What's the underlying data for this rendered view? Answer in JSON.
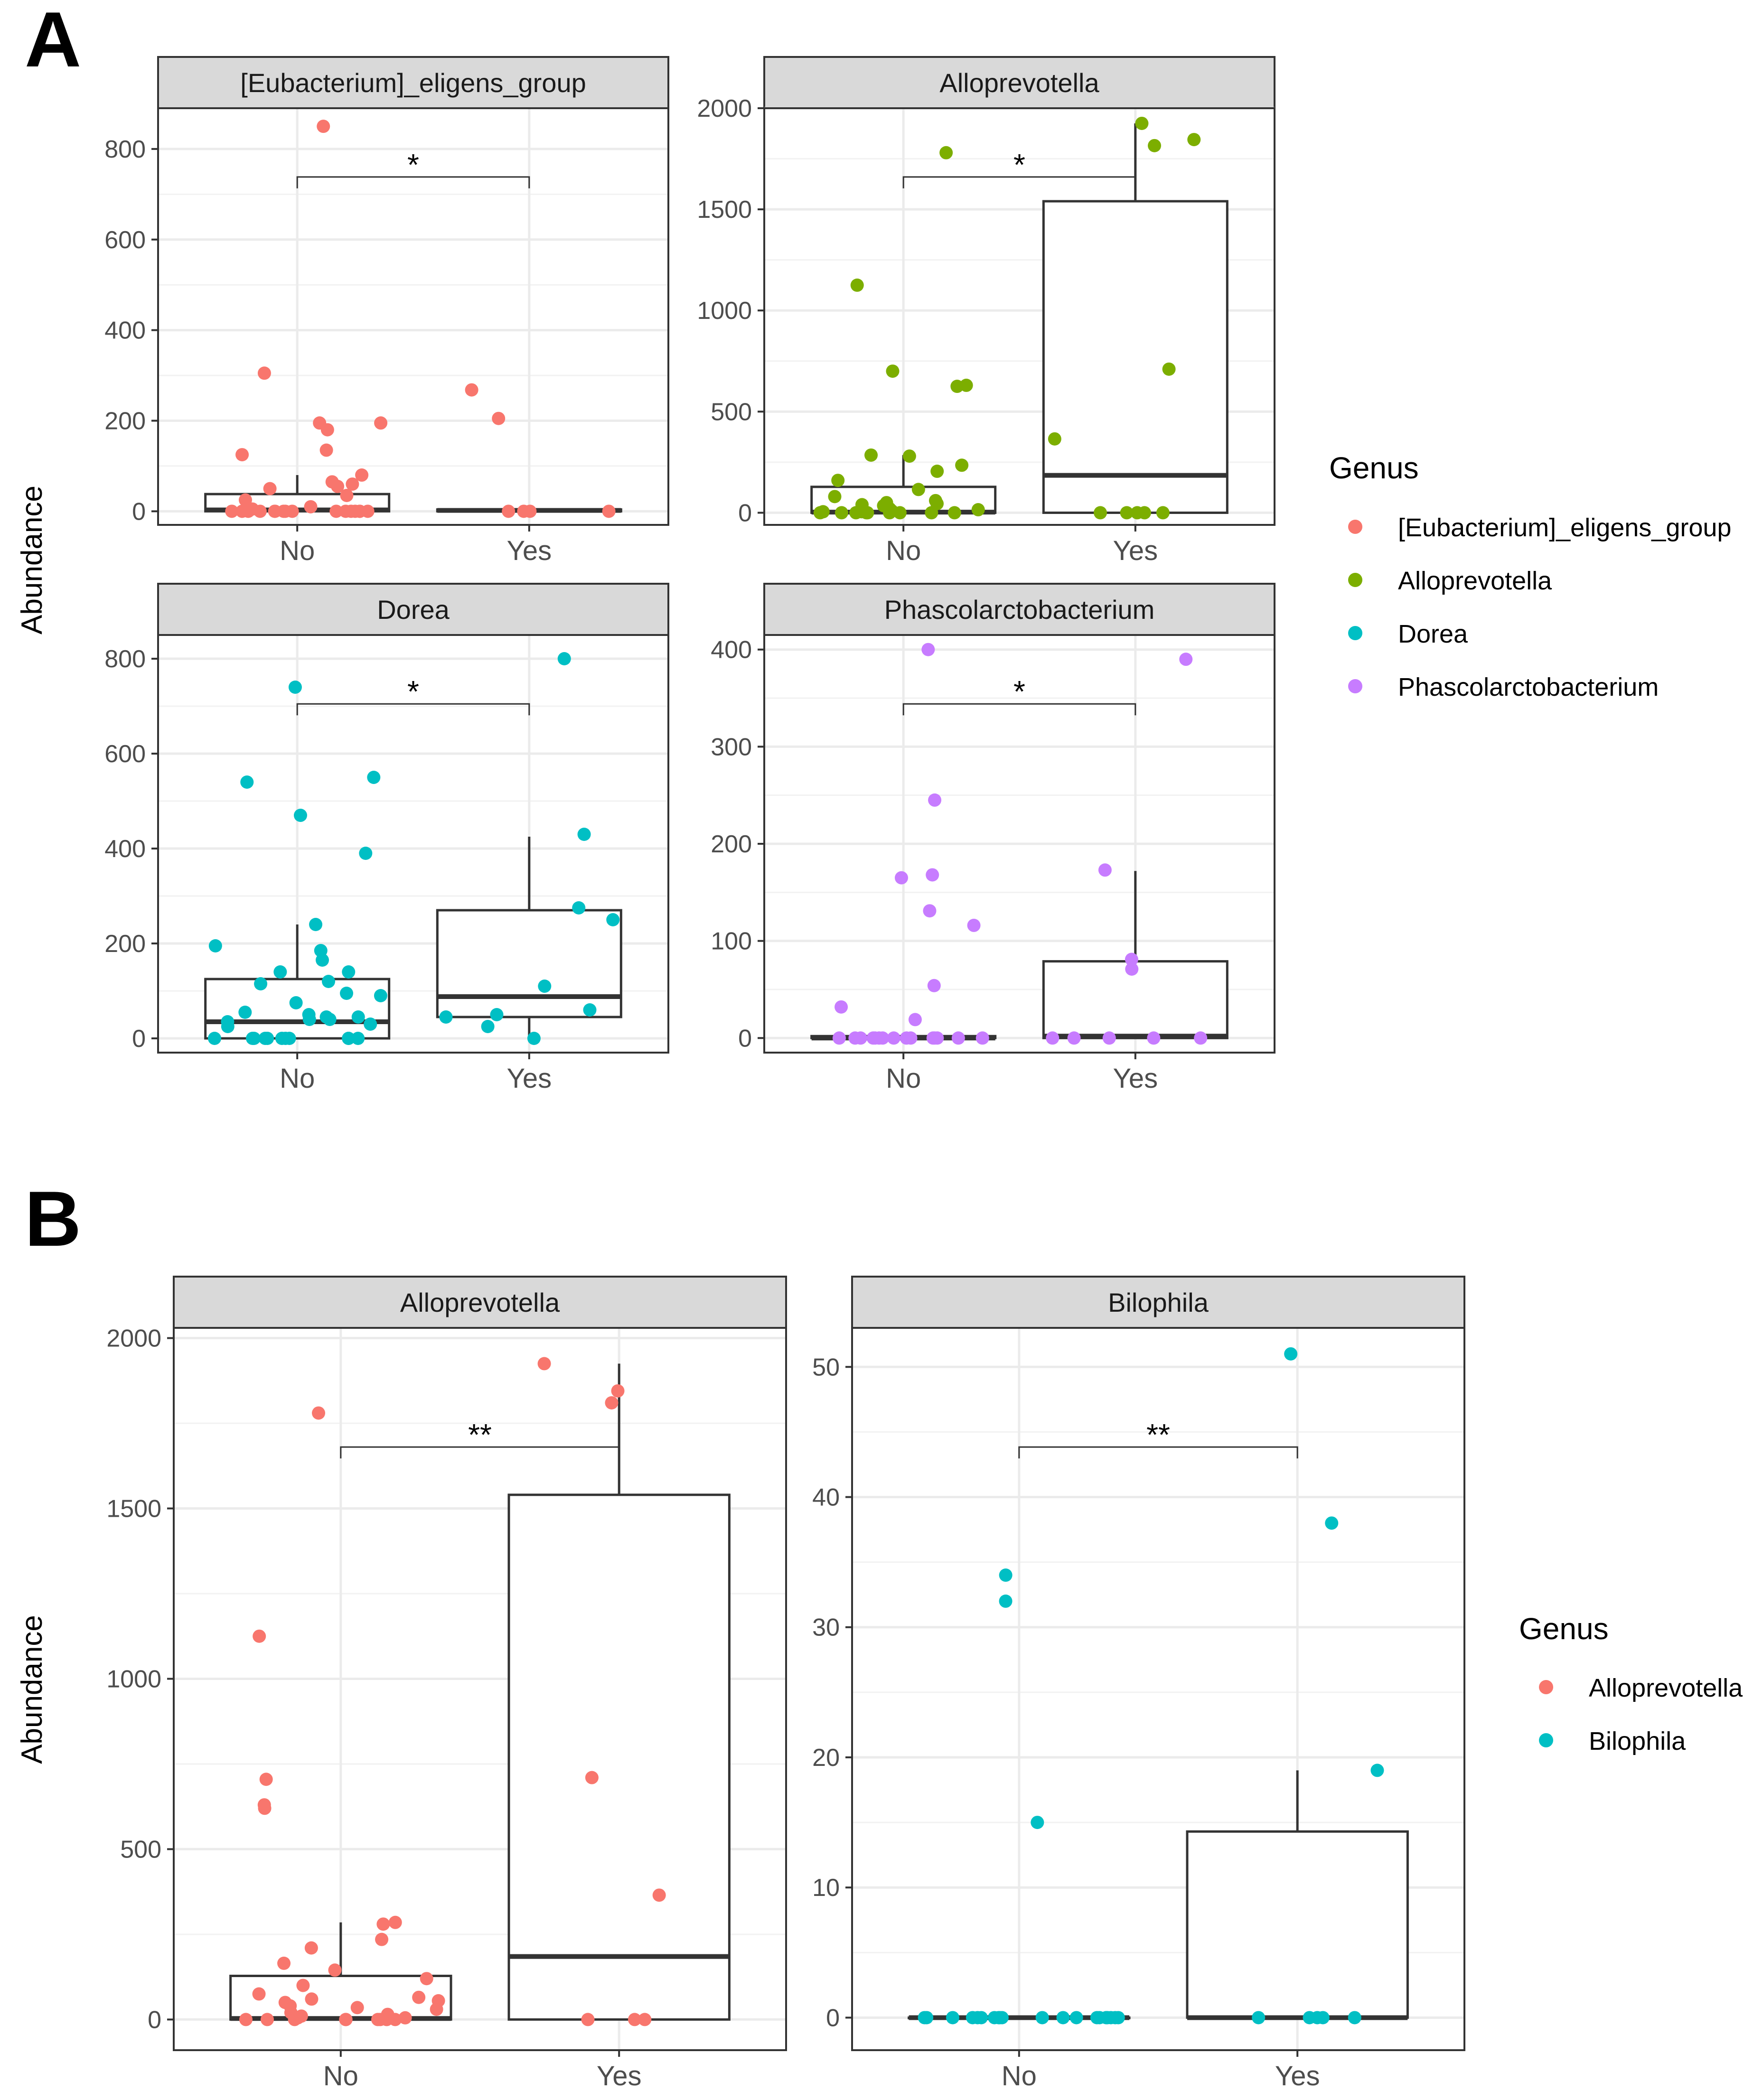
{
  "figure": {
    "y_axis_label": "Abundance",
    "legend_title": "Genus",
    "colors": {
      "eligens": "#F8766D",
      "allo_a": "#7CAE00",
      "dorea": "#00BFC4",
      "phasco": "#C77CFF",
      "allo_b": "#F8766D",
      "bilo": "#00BFC4"
    }
  },
  "panels": [
    {
      "label": "A",
      "legend": [
        {
          "name": "[Eubacterium]_eligens_group",
          "color": "#F8766D"
        },
        {
          "name": "Alloprevotella",
          "color": "#7CAE00"
        },
        {
          "name": "Dorea",
          "color": "#00BFC4"
        },
        {
          "name": "Phascolarctobacterium",
          "color": "#C77CFF"
        }
      ]
    },
    {
      "label": "B",
      "legend": [
        {
          "name": "Alloprevotella",
          "color": "#F8766D"
        },
        {
          "name": "Bilophila",
          "color": "#00BFC4"
        }
      ]
    }
  ],
  "chart_data": [
    {
      "panel": "A",
      "type": "box+jitter",
      "title": "[Eubacterium]_eligens_group",
      "color": "#F8766D",
      "categories": [
        "No",
        "Yes"
      ],
      "ylabel": "Abundance",
      "ylim": [
        -30,
        890
      ],
      "yticks": [
        0,
        200,
        400,
        600,
        800
      ],
      "significance": "*",
      "boxes": [
        {
          "category": "No",
          "q1": 0,
          "median": 3,
          "q3": 38,
          "whisker_low": 0,
          "whisker_high": 80
        },
        {
          "category": "Yes",
          "q1": 0,
          "median": 2,
          "q3": 4,
          "whisker_low": 0,
          "whisker_high": 4
        }
      ],
      "points": {
        "No": [
          850,
          305,
          195,
          195,
          180,
          135,
          125,
          80,
          65,
          60,
          55,
          50,
          35,
          25,
          10,
          5,
          0,
          0,
          0,
          0,
          0,
          0,
          0,
          0,
          0,
          0,
          0,
          0,
          0,
          0,
          0,
          0
        ],
        "Yes": [
          268,
          205,
          0,
          0,
          0,
          0
        ]
      }
    },
    {
      "panel": "A",
      "type": "box+jitter",
      "title": "Alloprevotella",
      "color": "#7CAE00",
      "categories": [
        "No",
        "Yes"
      ],
      "ylabel": "Abundance",
      "ylim": [
        -60,
        2000
      ],
      "yticks": [
        0,
        500,
        1000,
        1500,
        2000
      ],
      "significance": "*",
      "boxes": [
        {
          "category": "No",
          "q1": 0,
          "median": 3,
          "q3": 128,
          "whisker_low": 0,
          "whisker_high": 285
        },
        {
          "category": "Yes",
          "q1": 0,
          "median": 185,
          "q3": 1540,
          "whisker_low": 0,
          "whisker_high": 1925
        }
      ],
      "points": {
        "No": [
          1780,
          1125,
          700,
          630,
          625,
          285,
          280,
          235,
          205,
          160,
          115,
          80,
          60,
          50,
          45,
          40,
          35,
          30,
          20,
          15,
          10,
          5,
          5,
          0,
          0,
          0,
          0,
          0,
          0,
          0,
          0,
          0
        ],
        "Yes": [
          1925,
          1845,
          1815,
          710,
          365,
          0,
          0,
          0,
          0,
          0
        ]
      }
    },
    {
      "panel": "A",
      "type": "box+jitter",
      "title": "Dorea",
      "color": "#00BFC4",
      "categories": [
        "No",
        "Yes"
      ],
      "ylabel": "Abundance",
      "ylim": [
        -30,
        850
      ],
      "yticks": [
        0,
        200,
        400,
        600,
        800
      ],
      "significance": "*",
      "boxes": [
        {
          "category": "No",
          "q1": 0,
          "median": 35,
          "q3": 125,
          "whisker_low": 0,
          "whisker_high": 240
        },
        {
          "category": "Yes",
          "q1": 45,
          "median": 88,
          "q3": 270,
          "whisker_low": 0,
          "whisker_high": 425
        }
      ],
      "points": {
        "No": [
          740,
          550,
          540,
          470,
          390,
          240,
          195,
          185,
          165,
          140,
          140,
          120,
          115,
          95,
          90,
          75,
          55,
          50,
          45,
          45,
          40,
          40,
          35,
          30,
          25,
          0,
          0,
          0,
          0,
          0,
          0,
          0,
          0,
          0,
          0,
          0
        ],
        "Yes": [
          800,
          430,
          275,
          250,
          110,
          60,
          50,
          45,
          25,
          0
        ]
      }
    },
    {
      "panel": "A",
      "type": "box+jitter",
      "title": "Phascolarctobacterium",
      "color": "#C77CFF",
      "categories": [
        "No",
        "Yes"
      ],
      "ylabel": "Abundance",
      "ylim": [
        -15,
        415
      ],
      "yticks": [
        0,
        100,
        200,
        300,
        400
      ],
      "significance": "*",
      "boxes": [
        {
          "category": "No",
          "q1": 0,
          "median": 0,
          "q3": 2,
          "whisker_low": 0,
          "whisker_high": 2
        },
        {
          "category": "Yes",
          "q1": 0,
          "median": 2,
          "q3": 79,
          "whisker_low": 0,
          "whisker_high": 172
        }
      ],
      "points": {
        "No": [
          400,
          245,
          168,
          165,
          131,
          116,
          54,
          32,
          19,
          0,
          0,
          0,
          0,
          0,
          0,
          0,
          0,
          0,
          0,
          0,
          0,
          0,
          0,
          0
        ],
        "Yes": [
          390,
          173,
          81,
          71,
          0,
          0,
          0,
          0,
          0
        ]
      }
    },
    {
      "panel": "B",
      "type": "box+jitter",
      "title": "Alloprevotella",
      "color": "#F8766D",
      "categories": [
        "No",
        "Yes"
      ],
      "ylabel": "Abundance",
      "ylim": [
        -90,
        2030
      ],
      "yticks": [
        0,
        500,
        1000,
        1500,
        2000
      ],
      "significance": "**",
      "boxes": [
        {
          "category": "No",
          "q1": 0,
          "median": 3,
          "q3": 128,
          "whisker_low": 0,
          "whisker_high": 285
        },
        {
          "category": "Yes",
          "q1": 0,
          "median": 185,
          "q3": 1540,
          "whisker_low": 0,
          "whisker_high": 1925
        }
      ],
      "points": {
        "No": [
          1780,
          1125,
          705,
          630,
          620,
          285,
          280,
          235,
          210,
          165,
          145,
          120,
          100,
          75,
          65,
          60,
          55,
          50,
          40,
          35,
          30,
          20,
          15,
          10,
          5,
          5,
          0,
          0,
          0,
          0,
          0,
          0,
          0,
          0,
          0
        ],
        "Yes": [
          1925,
          1845,
          1810,
          710,
          365,
          0,
          0,
          0
        ]
      }
    },
    {
      "panel": "B",
      "type": "box+jitter",
      "title": "Bilophila",
      "color": "#00BFC4",
      "categories": [
        "No",
        "Yes"
      ],
      "ylabel": "Abundance",
      "ylim": [
        -2.5,
        53
      ],
      "yticks": [
        0,
        10,
        20,
        30,
        40,
        50
      ],
      "significance": "**",
      "boxes": [
        {
          "category": "No",
          "q1": 0,
          "median": 0,
          "q3": 0,
          "whisker_low": 0,
          "whisker_high": 0
        },
        {
          "category": "Yes",
          "q1": 0,
          "median": 0,
          "q3": 14.3,
          "whisker_low": 0,
          "whisker_high": 19
        }
      ],
      "points": {
        "No": [
          34,
          32,
          15,
          0,
          0,
          0,
          0,
          0,
          0,
          0,
          0,
          0,
          0,
          0,
          0,
          0,
          0,
          0,
          0,
          0,
          0,
          0,
          0,
          0,
          0
        ],
        "Yes": [
          51,
          38,
          19,
          0,
          0,
          0,
          0,
          0
        ]
      }
    }
  ]
}
